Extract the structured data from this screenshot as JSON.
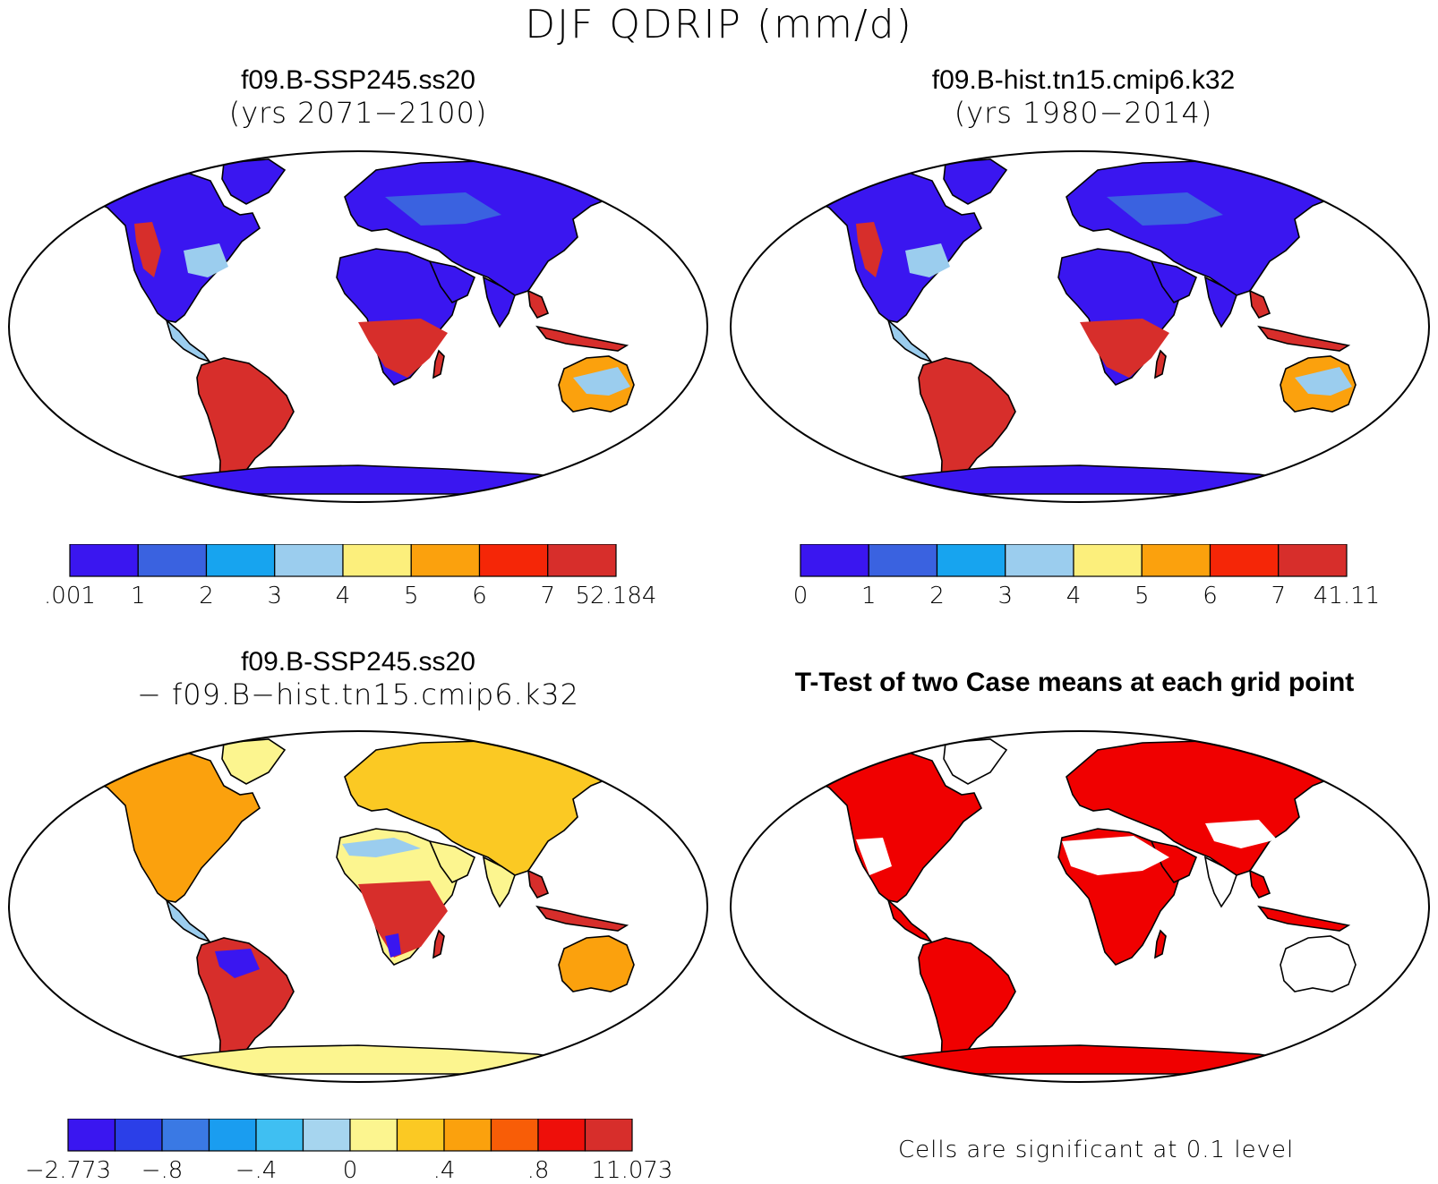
{
  "figure": {
    "title": "DJF QDRIP (mm/d)"
  },
  "panels": {
    "top_left": {
      "title": "f09.B-SSP245.ss20",
      "subtitle": "(yrs 2071−2100)"
    },
    "top_right": {
      "title": "f09.B-hist.tn15.cmip6.k32",
      "subtitle": "(yrs 1980−2014)"
    },
    "bottom_left": {
      "title": "f09.B-SSP245.ss20",
      "subtitle": "− f09.B−hist.tn15.cmip6.k32"
    },
    "bottom_right": {
      "title": "T-Test of two Case means at each grid point",
      "footnote": "Cells are significant at 0.1 level"
    }
  },
  "colorbars": {
    "top_left": {
      "colors": [
        "#3a16f0",
        "#3a62e0",
        "#17a4ef",
        "#9bcdee",
        "#fcef7c",
        "#fba10d",
        "#f52607",
        "#d72e2b"
      ],
      "labels": [
        ".001",
        "1",
        "2",
        "3",
        "4",
        "5",
        "6",
        "7",
        "52.184"
      ]
    },
    "top_right": {
      "colors": [
        "#3a16f0",
        "#3a62e0",
        "#17a4ef",
        "#9bcdee",
        "#fcef7c",
        "#fba10d",
        "#f52607",
        "#d72e2b"
      ],
      "labels": [
        "0",
        "1",
        "2",
        "3",
        "4",
        "5",
        "6",
        "7",
        "41.11"
      ]
    },
    "bottom_left": {
      "colors": [
        "#3a16f0",
        "#2b3fe8",
        "#3a79e4",
        "#1a9df0",
        "#3fbff2",
        "#a6d5ef",
        "#fcf58f",
        "#fbc923",
        "#fba10d",
        "#f85d07",
        "#ee0f0a",
        "#d72e2b"
      ],
      "labels": [
        "−2.773",
        "−.8",
        "−.4",
        "0",
        ".4",
        ".8",
        "11.073"
      ]
    }
  },
  "maps": {
    "colors": {
      "dry": "#3a16f0",
      "wet": "#d72e2b",
      "mid": "#fba10d",
      "pale": "#fcf58f",
      "light_blue": "#9bcdee",
      "significant": "#f00000"
    }
  }
}
